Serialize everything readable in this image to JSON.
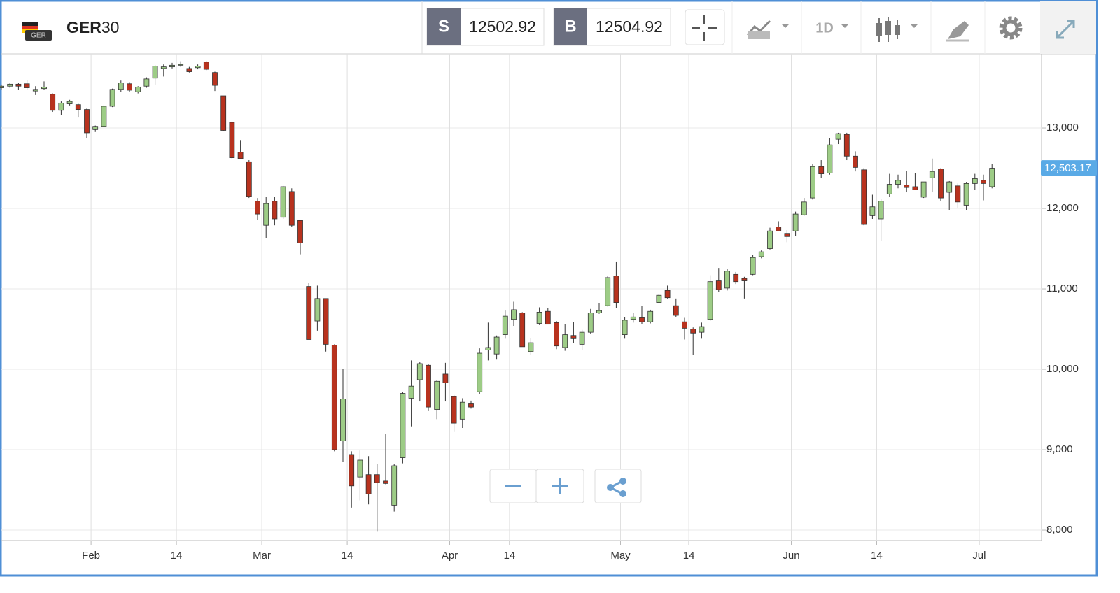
{
  "header": {
    "flag_label": "GER",
    "symbol_base": "GER",
    "symbol_suffix": "30",
    "sell_label": "S",
    "sell_price": "12502.92",
    "buy_label": "B",
    "buy_price": "12504.92",
    "interval": "1D"
  },
  "chart_data": {
    "type": "candlestick",
    "categories": [
      null,
      null,
      null,
      null,
      null,
      null,
      null,
      null,
      null,
      null,
      null,
      "Feb",
      null,
      null,
      null,
      null,
      null,
      null,
      null,
      null,
      null,
      "14",
      null,
      null,
      null,
      null,
      null,
      null,
      null,
      null,
      null,
      "Mar",
      null,
      null,
      null,
      null,
      null,
      null,
      null,
      null,
      null,
      "14",
      null,
      null,
      null,
      null,
      null,
      null,
      null,
      null,
      null,
      null,
      null,
      "Apr",
      null,
      null,
      null,
      null,
      null,
      null,
      "14",
      null,
      null,
      null,
      null,
      null,
      null,
      null,
      null,
      null,
      null,
      null,
      null,
      "May",
      null,
      null,
      null,
      null,
      null,
      null,
      null,
      "14",
      null,
      null,
      null,
      null,
      null,
      null,
      null,
      null,
      null,
      null,
      null,
      "Jun",
      null,
      null,
      null,
      null,
      null,
      null,
      null,
      null,
      null,
      "14",
      null,
      null,
      null,
      null,
      null,
      null,
      null,
      null,
      null,
      null,
      null,
      "Jul",
      null
    ],
    "open": [
      13500,
      13520,
      13545,
      13550,
      13460,
      13490,
      13420,
      13220,
      13300,
      13290,
      13230,
      12980,
      13020,
      13270,
      13480,
      13550,
      13450,
      13520,
      13620,
      13740,
      13760,
      13780,
      13740,
      13750,
      13820,
      13690,
      13400,
      13070,
      12700,
      12580,
      12090,
      11790,
      12090,
      11890,
      12210,
      11850,
      11030,
      10600,
      10880,
      10300,
      9110,
      8940,
      8660,
      8690,
      8690,
      8610,
      8310,
      8900,
      9640,
      9870,
      10050,
      9500,
      9940,
      9660,
      9380,
      9570,
      9720,
      10240,
      10190,
      10430,
      10620,
      10700,
      10220,
      10570,
      10720,
      10580,
      10270,
      10420,
      10310,
      10460,
      10700,
      10790,
      11160,
      10430,
      10620,
      10640,
      10590,
      10830,
      10980,
      10790,
      10590,
      10500,
      10460,
      10620,
      11100,
      11010,
      11180,
      11130,
      11180,
      11400,
      11500,
      11770,
      11690,
      11720,
      11920,
      12130,
      12520,
      12440,
      12860,
      12920,
      12650,
      12480,
      11910,
      11870,
      12180,
      12300,
      12290,
      12270,
      12140,
      12380,
      12490,
      12200,
      12280,
      12040,
      12310,
      12350,
      12270
    ],
    "high": [
      13540,
      13560,
      13560,
      13600,
      13520,
      13580,
      13430,
      13330,
      13350,
      13300,
      13240,
      13030,
      13280,
      13490,
      13590,
      13570,
      13520,
      13630,
      13780,
      13790,
      13810,
      13830,
      13760,
      13790,
      13830,
      13700,
      13400,
      13080,
      12850,
      12600,
      12130,
      12140,
      12140,
      12280,
      12250,
      11860,
      11070,
      11040,
      10880,
      10310,
      10000,
      8980,
      8990,
      8920,
      8820,
      9200,
      8820,
      9720,
      10110,
      10090,
      10070,
      9870,
      10080,
      9680,
      9640,
      9610,
      10260,
      10580,
      10420,
      10730,
      10840,
      10710,
      10390,
      10770,
      10760,
      10600,
      10560,
      10590,
      10490,
      10750,
      10820,
      11160,
      11340,
      10650,
      10700,
      10790,
      10740,
      10930,
      11040,
      10880,
      10640,
      10520,
      10580,
      11170,
      11260,
      11250,
      11210,
      11150,
      11420,
      11480,
      11760,
      11840,
      11730,
      11960,
      12130,
      12550,
      12600,
      12870,
      12940,
      12940,
      12710,
      12500,
      12170,
      12120,
      12430,
      12420,
      12470,
      12440,
      12330,
      12620,
      12500,
      12340,
      12310,
      12330,
      12430,
      12420,
      12550
    ],
    "low": [
      13480,
      13500,
      13470,
      13480,
      13410,
      13470,
      13200,
      13160,
      13280,
      13130,
      12870,
      12950,
      13010,
      13260,
      13450,
      13450,
      13430,
      13500,
      13540,
      13640,
      13740,
      13760,
      13690,
      13730,
      13720,
      13460,
      12960,
      12620,
      12620,
      12130,
      11860,
      11630,
      11790,
      11870,
      11770,
      11430,
      10370,
      10480,
      10220,
      8980,
      8850,
      8280,
      8370,
      8320,
      7980,
      8570,
      8230,
      8830,
      9290,
      9600,
      9480,
      9380,
      9600,
      9220,
      9270,
      9510,
      9690,
      10110,
      10120,
      10380,
      10540,
      10280,
      10180,
      10550,
      10560,
      10250,
      10230,
      10330,
      10240,
      10440,
      10690,
      10780,
      10760,
      10380,
      10580,
      10560,
      10570,
      10820,
      10880,
      10650,
      10370,
      10180,
      10380,
      10600,
      10960,
      10980,
      11060,
      10880,
      11170,
      11380,
      11490,
      11720,
      11580,
      11660,
      11910,
      12110,
      12380,
      12420,
      12800,
      12600,
      12460,
      11790,
      11870,
      11600,
      12140,
      12250,
      12200,
      12230,
      12130,
      12200,
      12090,
      11980,
      12010,
      11980,
      12230,
      12100,
      12250
    ],
    "close": [
      13520,
      13545,
      13520,
      13500,
      13480,
      13510,
      13220,
      13310,
      13330,
      13230,
      12940,
      13020,
      13270,
      13480,
      13560,
      13470,
      13510,
      13610,
      13770,
      13760,
      13780,
      13790,
      13700,
      13770,
      13730,
      13530,
      12970,
      12630,
      12620,
      12150,
      11930,
      12060,
      11870,
      12270,
      11790,
      11570,
      10370,
      10880,
      10310,
      9000,
      9630,
      8550,
      8870,
      8450,
      8590,
      8580,
      8800,
      9700,
      9790,
      10070,
      9530,
      9850,
      9830,
      9330,
      9590,
      9530,
      10200,
      10270,
      10400,
      10660,
      10740,
      10280,
      10330,
      10710,
      10560,
      10290,
      10430,
      10380,
      10460,
      10700,
      10730,
      11140,
      10830,
      10610,
      10650,
      10590,
      10720,
      10920,
      10890,
      10670,
      10510,
      10450,
      10530,
      11090,
      10990,
      11220,
      11090,
      11100,
      11390,
      11460,
      11720,
      11720,
      11650,
      11930,
      12080,
      12520,
      12430,
      12790,
      12930,
      12650,
      12510,
      11800,
      12020,
      12090,
      12300,
      12350,
      12260,
      12230,
      12330,
      12460,
      12130,
      12330,
      12080,
      12310,
      12370,
      12310,
      12500
    ],
    "up_color": "#9dcc86",
    "down_color": "#b8321e",
    "current_price": 12503.17,
    "current_price_label": "12,503.17",
    "ylim": [
      7870,
      13922
    ],
    "yticks": [
      {
        "value": 8000,
        "label": "8,000"
      },
      {
        "value": 9000,
        "label": "9,000"
      },
      {
        "value": 10000,
        "label": "10,000"
      },
      {
        "value": 11000,
        "label": "11,000"
      },
      {
        "value": 12000,
        "label": "12,000"
      },
      {
        "value": 13000,
        "label": "13,000"
      }
    ],
    "grid": true
  }
}
